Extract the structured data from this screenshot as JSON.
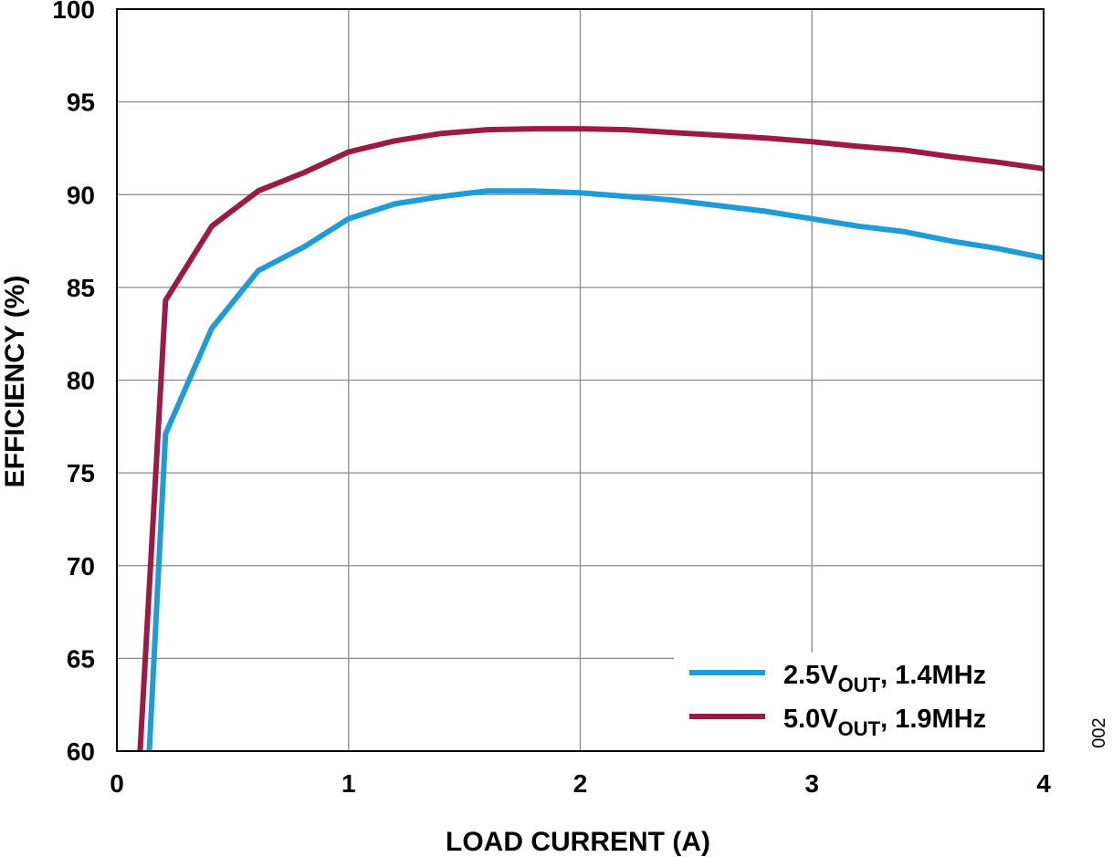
{
  "chart_data": {
    "type": "line",
    "xlabel": "LOAD CURRENT (A)",
    "ylabel": "EFFICIENCY (%)",
    "xlim": [
      0,
      4
    ],
    "ylim": [
      60,
      100
    ],
    "xticks": [
      "0",
      "1",
      "2",
      "3",
      "4"
    ],
    "yticks": [
      "60",
      "65",
      "70",
      "75",
      "80",
      "85",
      "90",
      "95",
      "100"
    ],
    "grid": true,
    "legend_position": "bottom-right",
    "figure_id": "002",
    "series": [
      {
        "name": "2.5V",
        "name_sub": "OUT",
        "name_suffix": ", 1.4MHz",
        "color": "#1f9bd7",
        "x": [
          0.14,
          0.21,
          0.41,
          0.61,
          0.81,
          1.0,
          1.2,
          1.4,
          1.6,
          1.8,
          2.0,
          2.2,
          2.4,
          2.6,
          2.8,
          3.0,
          3.2,
          3.4,
          3.6,
          3.8,
          4.0
        ],
        "y": [
          60.0,
          77.1,
          82.8,
          85.9,
          87.2,
          88.7,
          89.5,
          89.9,
          90.2,
          90.2,
          90.1,
          89.9,
          89.7,
          89.4,
          89.1,
          88.7,
          88.3,
          88.0,
          87.5,
          87.1,
          86.6
        ]
      },
      {
        "name": "5.0V",
        "name_sub": "OUT",
        "name_suffix": ", 1.9MHz",
        "color": "#9b1b44",
        "x": [
          0.1,
          0.21,
          0.41,
          0.61,
          0.81,
          1.0,
          1.2,
          1.4,
          1.6,
          1.8,
          2.0,
          2.2,
          2.4,
          2.6,
          2.8,
          3.0,
          3.2,
          3.4,
          3.6,
          3.8,
          4.0
        ],
        "y": [
          60.0,
          84.3,
          88.3,
          90.2,
          91.2,
          92.3,
          92.9,
          93.3,
          93.5,
          93.55,
          93.55,
          93.5,
          93.35,
          93.2,
          93.05,
          92.85,
          92.6,
          92.4,
          92.05,
          91.75,
          91.4
        ]
      }
    ]
  }
}
